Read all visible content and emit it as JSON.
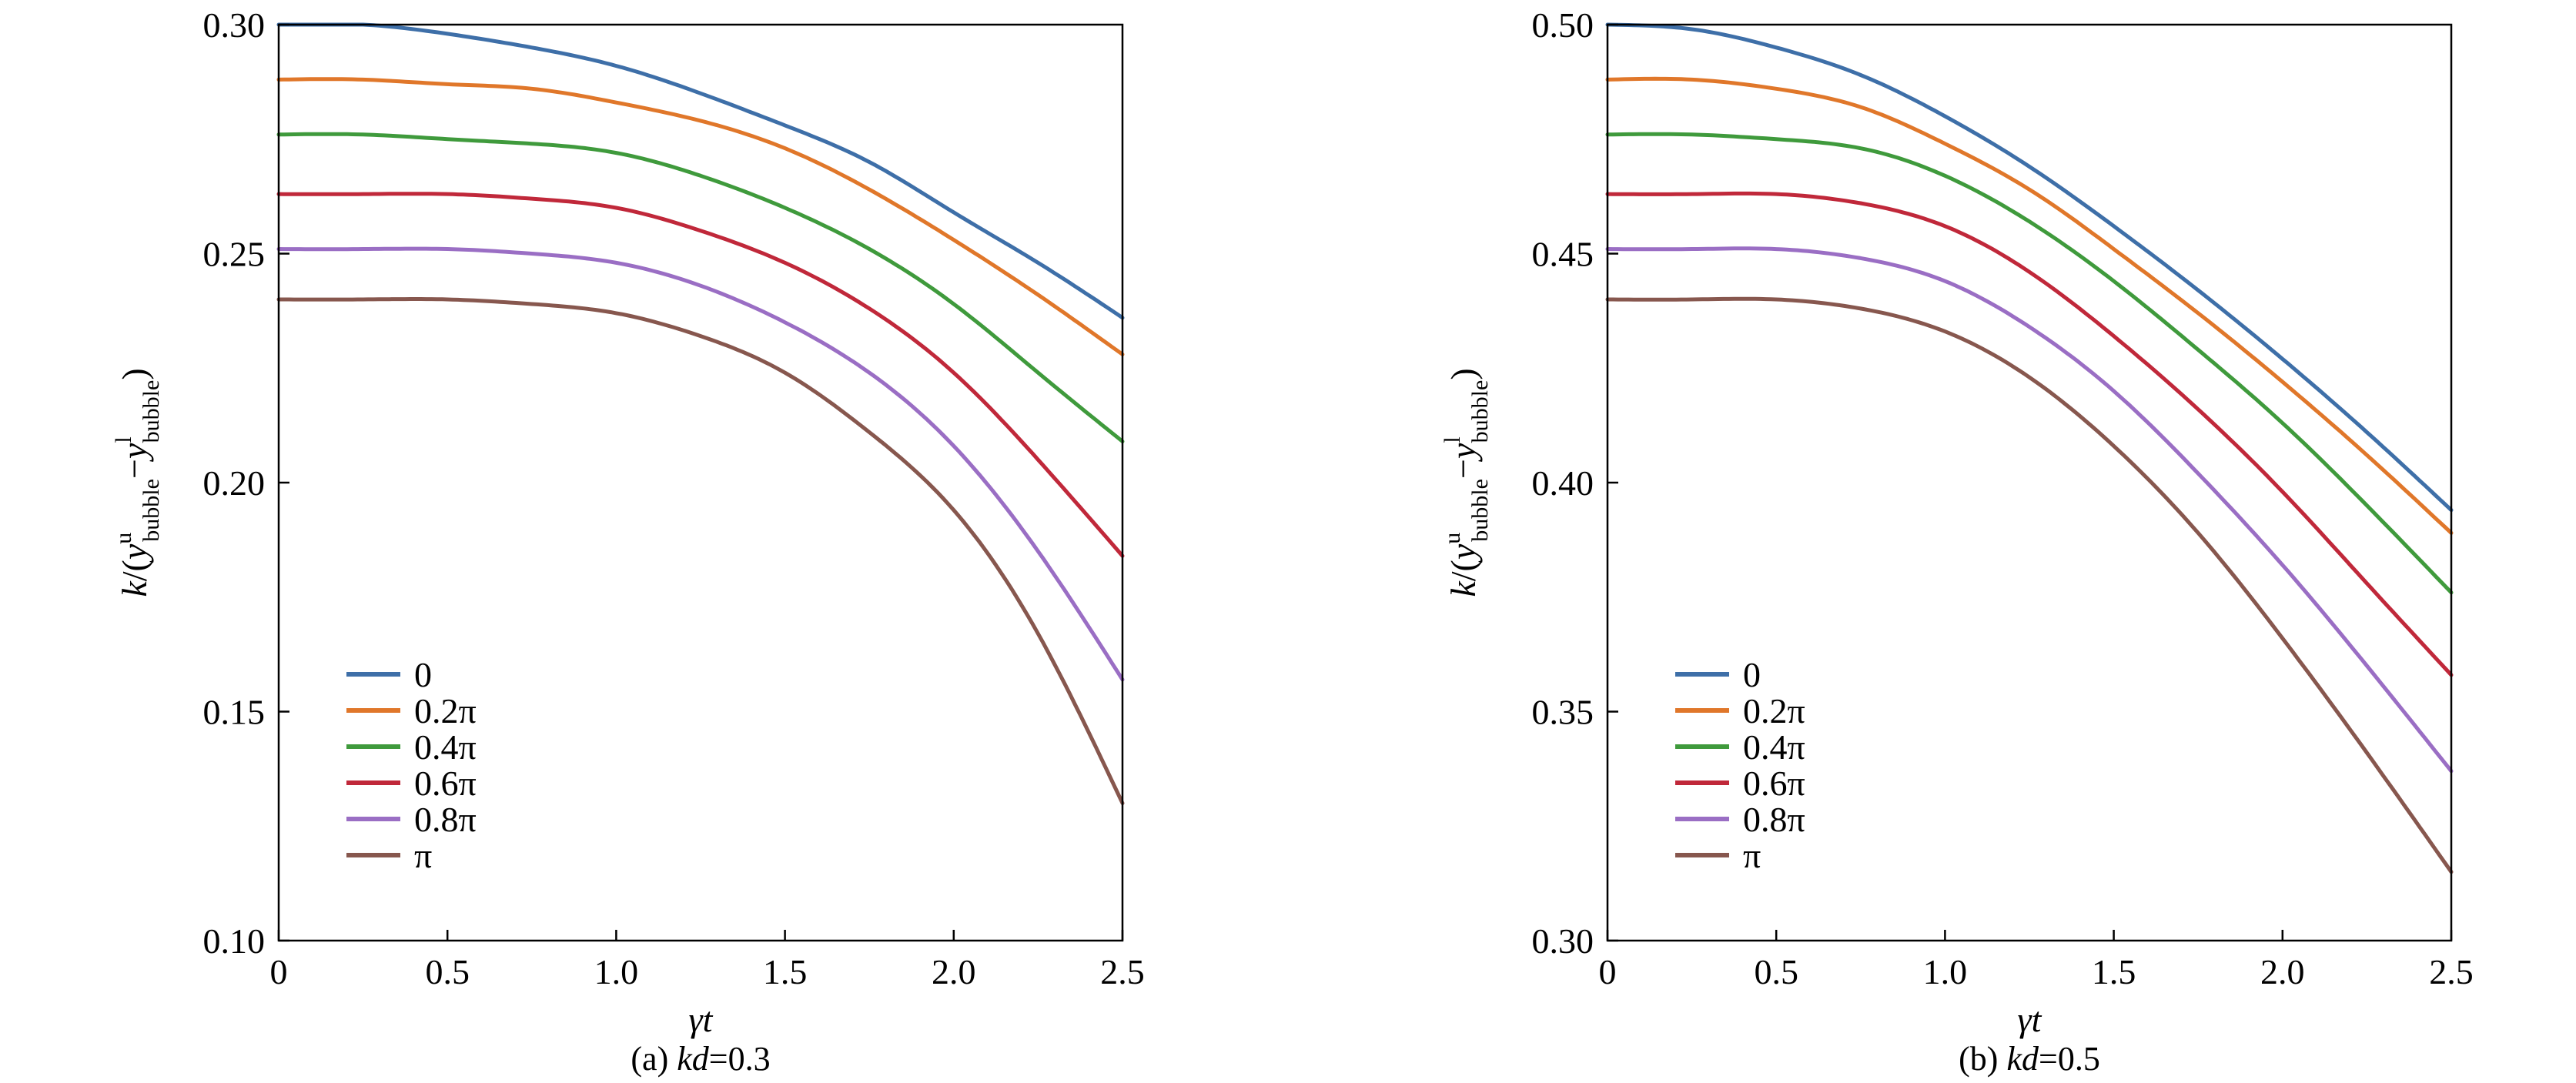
{
  "chart_data": [
    {
      "type": "line",
      "caption": {
        "prefix": "(a) ",
        "var": "kd",
        "suffix": "=0.3"
      },
      "xlabel": {
        "sym1": "γ",
        "sym2": "t"
      },
      "ylabel": {
        "k": "k",
        "open": "/(",
        "y": "y",
        "sup_u": "u",
        "sub": "bubble",
        "minus": "−",
        "sup_l": "l",
        "close": ")"
      },
      "xlim": [
        0,
        2.5
      ],
      "ylim": [
        0.1,
        0.3
      ],
      "xticks": [
        0,
        0.5,
        1.0,
        1.5,
        2.0,
        2.5
      ],
      "xtick_labels": [
        "0",
        "0.5",
        "1.0",
        "1.5",
        "2.0",
        "2.5"
      ],
      "yticks": [
        0.1,
        0.15,
        0.2,
        0.25,
        0.3
      ],
      "ytick_labels": [
        "0.10",
        "0.15",
        "0.20",
        "0.25",
        "0.30"
      ],
      "grid": false,
      "legend_position": "lower-left",
      "x": [
        0,
        0.25,
        0.5,
        0.75,
        1.0,
        1.25,
        1.5,
        1.75,
        2.0,
        2.25,
        2.5
      ],
      "series": [
        {
          "name": "0",
          "color": "#3e6fa8",
          "values": [
            0.3,
            0.3,
            0.298,
            0.295,
            0.291,
            0.285,
            0.278,
            0.27,
            0.259,
            0.248,
            0.236
          ]
        },
        {
          "name": "0.2π",
          "color": "#e0772a",
          "values": [
            0.288,
            0.288,
            0.287,
            0.286,
            0.283,
            0.279,
            0.273,
            0.264,
            0.253,
            0.241,
            0.228
          ]
        },
        {
          "name": "0.4π",
          "color": "#3f9a3c",
          "values": [
            0.276,
            0.276,
            0.275,
            0.274,
            0.272,
            0.267,
            0.26,
            0.251,
            0.239,
            0.224,
            0.209
          ]
        },
        {
          "name": "0.6π",
          "color": "#c0283a",
          "values": [
            0.263,
            0.263,
            0.263,
            0.262,
            0.26,
            0.255,
            0.248,
            0.238,
            0.224,
            0.205,
            0.184
          ]
        },
        {
          "name": "0.8π",
          "color": "#9a6ec4",
          "values": [
            0.251,
            0.251,
            0.251,
            0.25,
            0.248,
            0.243,
            0.235,
            0.224,
            0.208,
            0.185,
            0.157
          ]
        },
        {
          "name": "π",
          "color": "#87574e",
          "values": [
            0.24,
            0.24,
            0.24,
            0.239,
            0.237,
            0.232,
            0.224,
            0.211,
            0.194,
            0.167,
            0.13
          ]
        }
      ]
    },
    {
      "type": "line",
      "caption": {
        "prefix": "(b) ",
        "var": "kd",
        "suffix": "=0.5"
      },
      "xlabel": {
        "sym1": "γ",
        "sym2": "t"
      },
      "ylabel": {
        "k": "k",
        "open": "/(",
        "y": "y",
        "sup_u": "u",
        "sub": "bubble",
        "minus": "−",
        "sup_l": "l",
        "close": ")"
      },
      "xlim": [
        0,
        2.5
      ],
      "ylim": [
        0.3,
        0.5
      ],
      "xticks": [
        0,
        0.5,
        1.0,
        1.5,
        2.0,
        2.5
      ],
      "xtick_labels": [
        "0",
        "0.5",
        "1.0",
        "1.5",
        "2.0",
        "2.5"
      ],
      "yticks": [
        0.3,
        0.35,
        0.4,
        0.45,
        0.5
      ],
      "ytick_labels": [
        "0.30",
        "0.35",
        "0.40",
        "0.45",
        "0.50"
      ],
      "grid": false,
      "legend_position": "lower-left",
      "x": [
        0,
        0.25,
        0.5,
        0.75,
        1.0,
        1.25,
        1.5,
        1.75,
        2.0,
        2.25,
        2.5
      ],
      "series": [
        {
          "name": "0",
          "color": "#3e6fa8",
          "values": [
            0.5,
            0.499,
            0.495,
            0.489,
            0.48,
            0.469,
            0.456,
            0.442,
            0.427,
            0.411,
            0.394
          ]
        },
        {
          "name": "0.2π",
          "color": "#e0772a",
          "values": [
            0.488,
            0.488,
            0.486,
            0.482,
            0.474,
            0.464,
            0.451,
            0.437,
            0.422,
            0.406,
            0.389
          ]
        },
        {
          "name": "0.4π",
          "color": "#3f9a3c",
          "values": [
            0.476,
            0.476,
            0.475,
            0.473,
            0.467,
            0.457,
            0.444,
            0.429,
            0.413,
            0.395,
            0.376
          ]
        },
        {
          "name": "0.6π",
          "color": "#c0283a",
          "values": [
            0.463,
            0.463,
            0.463,
            0.461,
            0.456,
            0.446,
            0.432,
            0.416,
            0.398,
            0.378,
            0.358
          ]
        },
        {
          "name": "0.8π",
          "color": "#9a6ec4",
          "values": [
            0.451,
            0.451,
            0.451,
            0.449,
            0.444,
            0.434,
            0.42,
            0.402,
            0.382,
            0.36,
            0.337
          ]
        },
        {
          "name": "π",
          "color": "#87574e",
          "values": [
            0.44,
            0.44,
            0.44,
            0.438,
            0.433,
            0.423,
            0.408,
            0.389,
            0.366,
            0.341,
            0.315
          ]
        }
      ]
    }
  ]
}
